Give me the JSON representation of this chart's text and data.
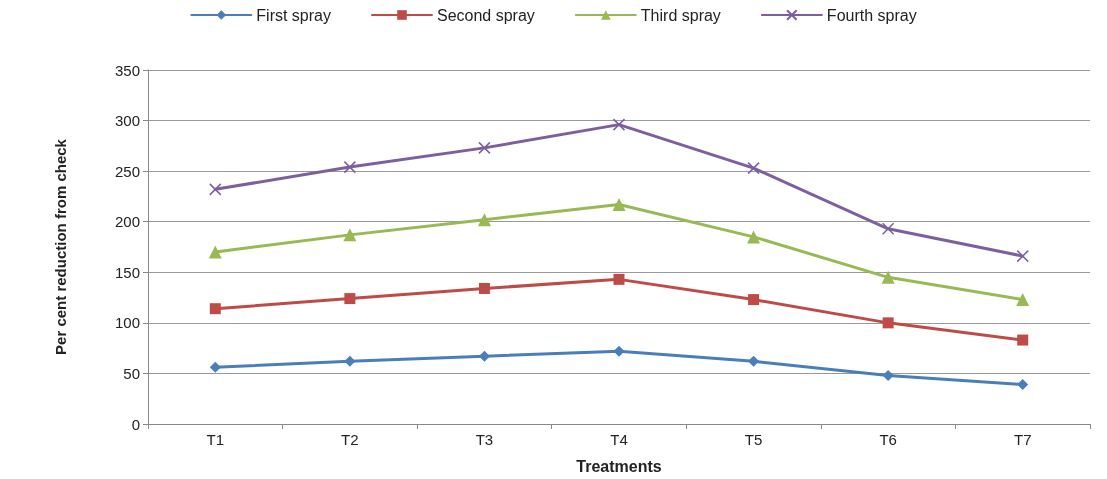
{
  "chart_data": {
    "type": "line",
    "xlabel": "Treatments",
    "ylabel": "Per cent reduction from check",
    "categories": [
      "T1",
      "T2",
      "T3",
      "T4",
      "T5",
      "T6",
      "T7"
    ],
    "series": [
      {
        "name": "First spray",
        "color": "#4a7ebb",
        "marker": "diamond",
        "values": [
          56,
          62,
          67,
          72,
          62,
          48,
          39
        ]
      },
      {
        "name": "Second spray",
        "color": "#be4b48",
        "marker": "square",
        "values": [
          114,
          124,
          134,
          143,
          123,
          100,
          83
        ]
      },
      {
        "name": "Third spray",
        "color": "#98b954",
        "marker": "triangle",
        "values": [
          170,
          187,
          202,
          217,
          185,
          145,
          123
        ]
      },
      {
        "name": "Fourth spray",
        "color": "#7d5fa0",
        "marker": "cross",
        "values": [
          232,
          254,
          273,
          296,
          253,
          193,
          166
        ]
      }
    ],
    "ylim": [
      0,
      350
    ],
    "yticks": [
      0,
      50,
      100,
      150,
      200,
      250,
      300,
      350
    ],
    "grid": "y",
    "legend": "top",
    "line_style": "solid"
  }
}
